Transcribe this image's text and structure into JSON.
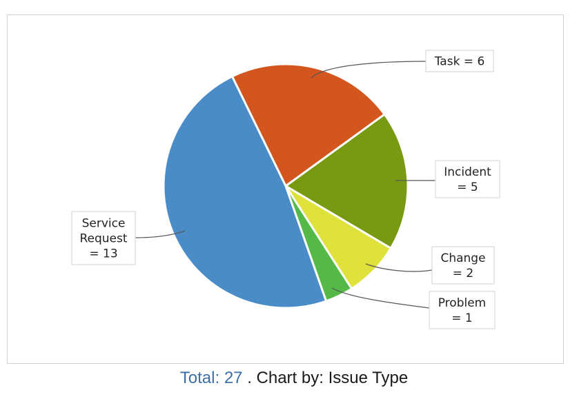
{
  "chart_data": {
    "type": "pie",
    "title": "",
    "slices": [
      {
        "label": "Task = 6",
        "value": 6,
        "color": "#d4561f"
      },
      {
        "label": "Incident = 5",
        "value": 5,
        "color": "#789a12"
      },
      {
        "label": "Change = 2",
        "value": 2,
        "color": "#dfe23a"
      },
      {
        "label": "Problem = 1",
        "value": 1,
        "color": "#55b948"
      },
      {
        "label": "Service Request = 13",
        "value": 13,
        "color": "#4a8cc8"
      }
    ]
  },
  "footer": {
    "total_label": "Total: 27",
    "chart_by": ". Chart by: Issue Type"
  }
}
